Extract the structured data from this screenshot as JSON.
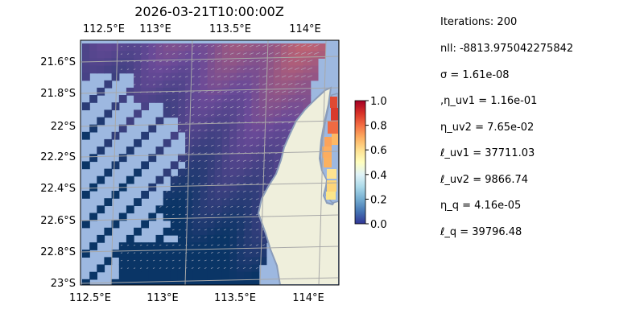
{
  "chart_data": {
    "type": "heatmap",
    "title": "2026-03-21T10:00:00Z",
    "x_ticks": [
      "112.5°E",
      "113°E",
      "113.5°E",
      "114°E"
    ],
    "y_ticks": [
      "21.6°S",
      "21.8°S",
      "22°S",
      "22.2°S",
      "22.4°S",
      "22.6°S",
      "22.8°S",
      "23°S"
    ],
    "xlim": [
      112.5,
      114.2
    ],
    "ylim": [
      -23.0,
      -21.4
    ],
    "colorbar": {
      "colormap": "RdYlBu_r",
      "range": [
        0.0,
        1.0
      ],
      "ticks": [
        "1.0",
        "0.8",
        "0.6",
        "0.4",
        "0.2",
        "0.0"
      ]
    },
    "grid": true,
    "colors": {
      "ocean_mask": "#9db8e0",
      "land": "#efefdc",
      "coastline": "#8a9cba",
      "field_low": "#0a3566",
      "field_mid": "#6a4a98",
      "field_high": "#d96a66"
    }
  },
  "params": {
    "iterations": "Iterations: 200",
    "nll": "nll: -8813.975042275842",
    "sigma": "σ = 1.61e-08",
    "eta_uv1": ",η_uv1 = 1.16e-01",
    "eta_uv2": "η_uv2 = 7.65e-02",
    "ell_uv1": "ℓ_uv1 = 37711.03",
    "ell_uv2": "ℓ_uv2 = 9866.74",
    "eta_q": "η_q = 4.16e-05",
    "ell_q": "ℓ_q = 39796.48"
  }
}
